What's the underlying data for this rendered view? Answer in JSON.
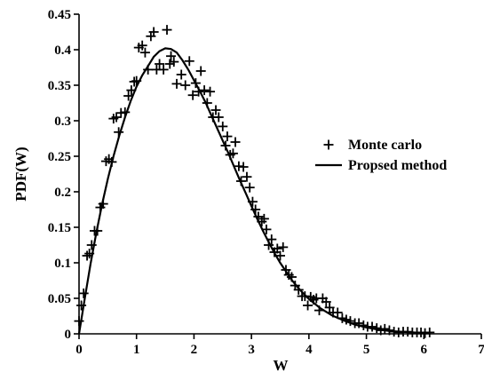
{
  "chart_data": {
    "type": "scatter",
    "xlabel": "W",
    "ylabel": "PDF(W)",
    "xlim": [
      0,
      7
    ],
    "ylim": [
      0,
      0.45
    ],
    "x_ticks": [
      "0",
      "1",
      "2",
      "3",
      "4",
      "5",
      "6",
      "7"
    ],
    "y_ticks": [
      "0",
      "0.05",
      "0.1",
      "0.15",
      "0.2",
      "0.25",
      "0.3",
      "0.35",
      "0.4",
      "0.45"
    ],
    "legend_position": "right",
    "series": [
      {
        "name": "Monte carlo",
        "kind": "scatter",
        "marker": "plus",
        "color": "#000000",
        "points": [
          [
            0.0,
            0.018
          ],
          [
            0.04,
            0.04
          ],
          [
            0.08,
            0.057
          ],
          [
            0.14,
            0.11
          ],
          [
            0.18,
            0.113
          ],
          [
            0.22,
            0.125
          ],
          [
            0.27,
            0.145
          ],
          [
            0.32,
            0.145
          ],
          [
            0.37,
            0.178
          ],
          [
            0.42,
            0.183
          ],
          [
            0.47,
            0.243
          ],
          [
            0.52,
            0.246
          ],
          [
            0.57,
            0.242
          ],
          [
            0.6,
            0.303
          ],
          [
            0.65,
            0.305
          ],
          [
            0.69,
            0.284
          ],
          [
            0.73,
            0.311
          ],
          [
            0.8,
            0.312
          ],
          [
            0.86,
            0.335
          ],
          [
            0.91,
            0.343
          ],
          [
            0.96,
            0.355
          ],
          [
            1.0,
            0.356
          ],
          [
            1.04,
            0.403
          ],
          [
            1.1,
            0.406
          ],
          [
            1.15,
            0.396
          ],
          [
            1.2,
            0.372
          ],
          [
            1.25,
            0.419
          ],
          [
            1.3,
            0.425
          ],
          [
            1.35,
            0.372
          ],
          [
            1.4,
            0.38
          ],
          [
            1.47,
            0.372
          ],
          [
            1.53,
            0.428
          ],
          [
            1.58,
            0.38
          ],
          [
            1.6,
            0.391
          ],
          [
            1.65,
            0.383
          ],
          [
            1.7,
            0.352
          ],
          [
            1.78,
            0.365
          ],
          [
            1.85,
            0.35
          ],
          [
            1.92,
            0.384
          ],
          [
            1.98,
            0.336
          ],
          [
            2.03,
            0.353
          ],
          [
            2.08,
            0.341
          ],
          [
            2.12,
            0.37
          ],
          [
            2.18,
            0.343
          ],
          [
            2.23,
            0.325
          ],
          [
            2.28,
            0.341
          ],
          [
            2.33,
            0.305
          ],
          [
            2.38,
            0.315
          ],
          [
            2.43,
            0.305
          ],
          [
            2.5,
            0.292
          ],
          [
            2.55,
            0.265
          ],
          [
            2.58,
            0.278
          ],
          [
            2.63,
            0.252
          ],
          [
            2.68,
            0.254
          ],
          [
            2.72,
            0.27
          ],
          [
            2.78,
            0.236
          ],
          [
            2.82,
            0.215
          ],
          [
            2.86,
            0.235
          ],
          [
            2.92,
            0.221
          ],
          [
            2.97,
            0.206
          ],
          [
            3.02,
            0.186
          ],
          [
            3.07,
            0.175
          ],
          [
            3.12,
            0.165
          ],
          [
            3.18,
            0.158
          ],
          [
            3.22,
            0.162
          ],
          [
            3.26,
            0.147
          ],
          [
            3.3,
            0.125
          ],
          [
            3.35,
            0.133
          ],
          [
            3.4,
            0.115
          ],
          [
            3.45,
            0.12
          ],
          [
            3.5,
            0.11
          ],
          [
            3.55,
            0.122
          ],
          [
            3.6,
            0.09
          ],
          [
            3.65,
            0.083
          ],
          [
            3.7,
            0.08
          ],
          [
            3.76,
            0.068
          ],
          [
            3.82,
            0.062
          ],
          [
            3.88,
            0.053
          ],
          [
            3.93,
            0.053
          ],
          [
            3.98,
            0.04
          ],
          [
            4.03,
            0.052
          ],
          [
            4.08,
            0.048
          ],
          [
            4.13,
            0.05
          ],
          [
            4.18,
            0.033
          ],
          [
            4.24,
            0.05
          ],
          [
            4.3,
            0.045
          ],
          [
            4.36,
            0.037
          ],
          [
            4.42,
            0.03
          ],
          [
            4.5,
            0.03
          ],
          [
            4.58,
            0.022
          ],
          [
            4.65,
            0.02
          ],
          [
            4.72,
            0.018
          ],
          [
            4.8,
            0.015
          ],
          [
            4.87,
            0.015
          ],
          [
            4.95,
            0.012
          ],
          [
            5.02,
            0.01
          ],
          [
            5.1,
            0.01
          ],
          [
            5.18,
            0.008
          ],
          [
            5.25,
            0.005
          ],
          [
            5.32,
            0.007
          ],
          [
            5.4,
            0.005
          ],
          [
            5.48,
            0.003
          ],
          [
            5.56,
            0.002
          ],
          [
            5.64,
            0.003
          ],
          [
            5.72,
            0.003
          ],
          [
            5.8,
            0.002
          ],
          [
            5.88,
            0.002
          ],
          [
            5.95,
            0.002
          ],
          [
            6.02,
            0.001
          ],
          [
            6.1,
            0.002
          ]
        ]
      },
      {
        "name": "Propsed method",
        "kind": "line",
        "color": "#000000",
        "points": [
          [
            0.0,
            0.0
          ],
          [
            0.1,
            0.05
          ],
          [
            0.2,
            0.098
          ],
          [
            0.3,
            0.142
          ],
          [
            0.4,
            0.182
          ],
          [
            0.5,
            0.218
          ],
          [
            0.6,
            0.25
          ],
          [
            0.7,
            0.279
          ],
          [
            0.8,
            0.305
          ],
          [
            0.9,
            0.328
          ],
          [
            1.0,
            0.348
          ],
          [
            1.1,
            0.364
          ],
          [
            1.2,
            0.377
          ],
          [
            1.3,
            0.39
          ],
          [
            1.4,
            0.398
          ],
          [
            1.5,
            0.402
          ],
          [
            1.6,
            0.401
          ],
          [
            1.7,
            0.396
          ],
          [
            1.8,
            0.385
          ],
          [
            1.9,
            0.372
          ],
          [
            2.0,
            0.357
          ],
          [
            2.1,
            0.342
          ],
          [
            2.2,
            0.326
          ],
          [
            2.3,
            0.308
          ],
          [
            2.4,
            0.29
          ],
          [
            2.5,
            0.272
          ],
          [
            2.6,
            0.254
          ],
          [
            2.7,
            0.235
          ],
          [
            2.8,
            0.216
          ],
          [
            2.9,
            0.198
          ],
          [
            3.0,
            0.18
          ],
          [
            3.1,
            0.162
          ],
          [
            3.2,
            0.145
          ],
          [
            3.3,
            0.129
          ],
          [
            3.4,
            0.114
          ],
          [
            3.5,
            0.1
          ],
          [
            3.6,
            0.088
          ],
          [
            3.7,
            0.076
          ],
          [
            3.8,
            0.066
          ],
          [
            3.9,
            0.057
          ],
          [
            4.0,
            0.049
          ],
          [
            4.2,
            0.036
          ],
          [
            4.4,
            0.026
          ],
          [
            4.6,
            0.019
          ],
          [
            4.8,
            0.013
          ],
          [
            5.0,
            0.009
          ],
          [
            5.2,
            0.006
          ],
          [
            5.4,
            0.004
          ],
          [
            5.6,
            0.003
          ],
          [
            5.8,
            0.002
          ],
          [
            6.0,
            0.001
          ],
          [
            6.1,
            0.001
          ]
        ]
      }
    ]
  }
}
